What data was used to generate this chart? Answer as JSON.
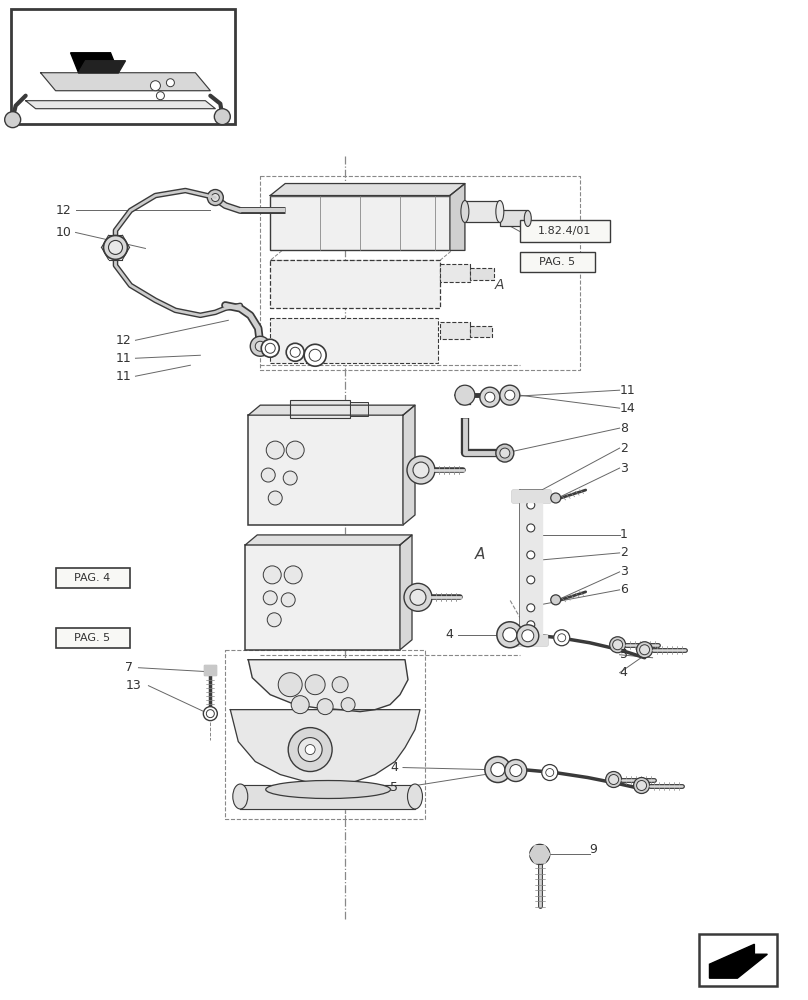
{
  "bg_color": "#ffffff",
  "lc": "#3a3a3a",
  "lc_light": "#aaaaaa",
  "lc_gray": "#888888",
  "label_fs": 9,
  "fig_width": 8.08,
  "fig_height": 10.0,
  "ref_box_label": "1.82.4/01",
  "pag5_label": "PAG. 5",
  "pag4_label": "PAG. 4",
  "pag5b_label": "PAG. 5"
}
